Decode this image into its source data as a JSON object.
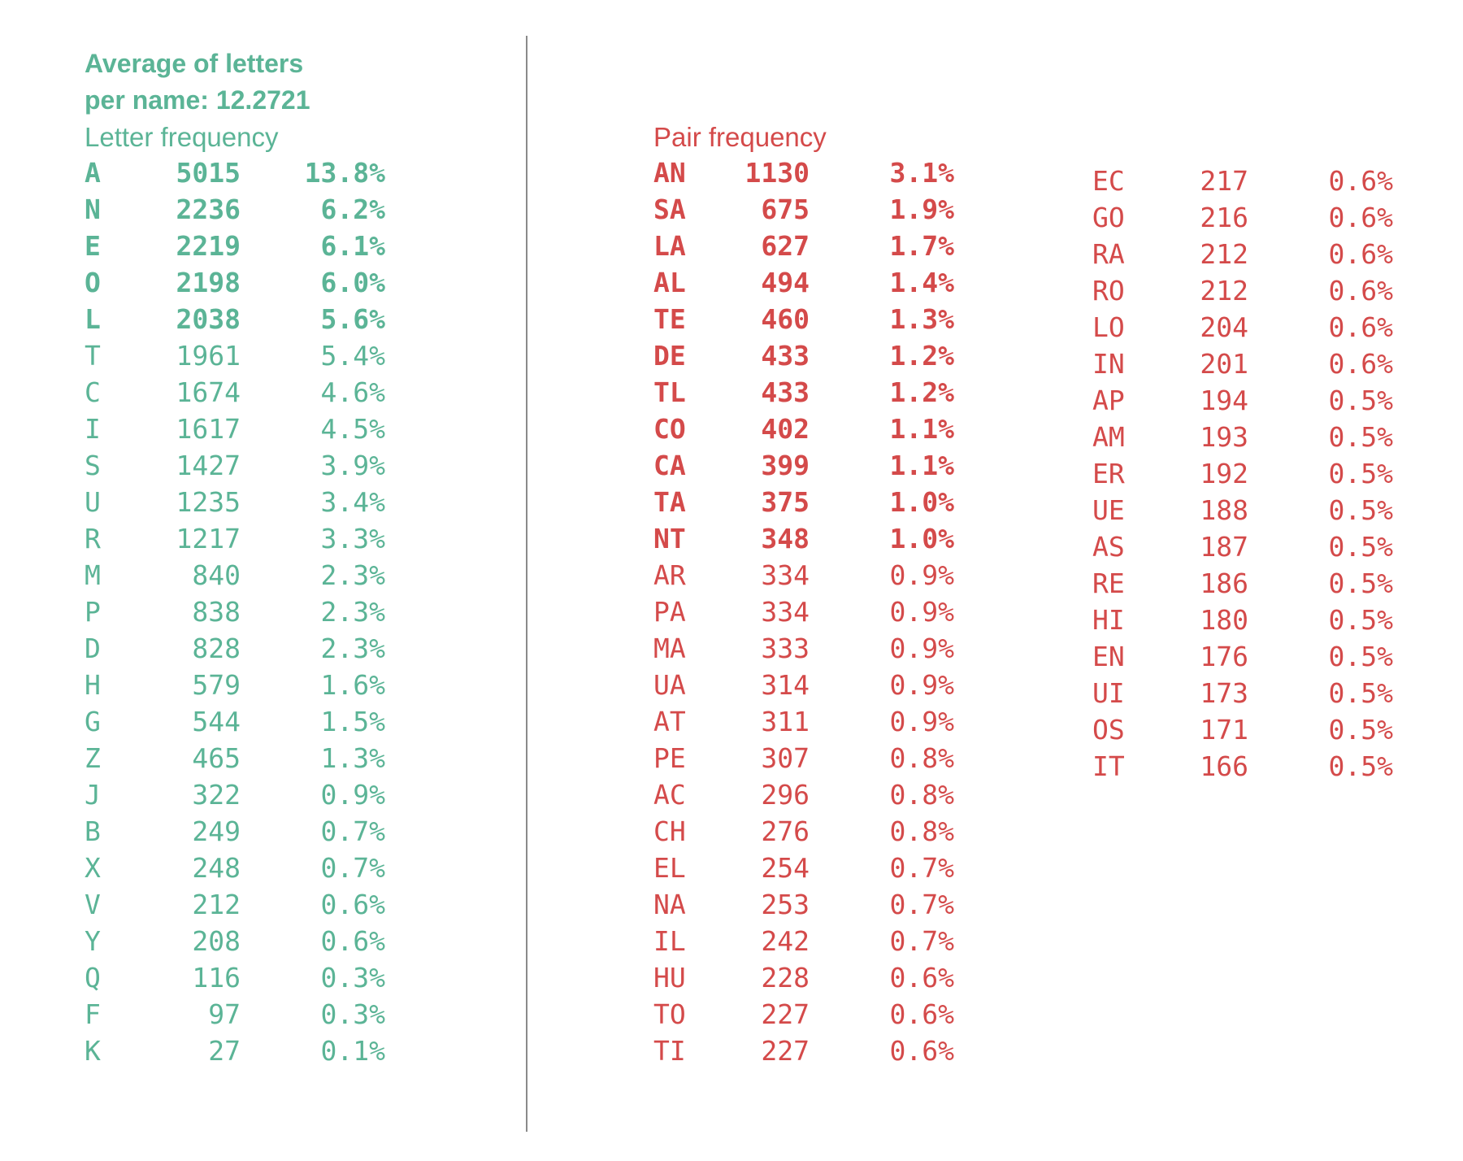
{
  "heading_line1": "Average of letters",
  "heading_line2": "per name: 12.2721",
  "letter_title": "Letter frequency",
  "pair_title": "Pair frequency",
  "colors": {
    "letters": "#5bb496",
    "pairs": "#d44a4a",
    "divider": "#8a8a8a"
  },
  "chart_data": [
    {
      "type": "table",
      "title": "Letter frequency",
      "columns": [
        "letter",
        "count",
        "percent"
      ],
      "bold_rows": 5,
      "rows": [
        [
          "A",
          "5015",
          "13.8%"
        ],
        [
          "N",
          "2236",
          "6.2%"
        ],
        [
          "E",
          "2219",
          "6.1%"
        ],
        [
          "O",
          "2198",
          "6.0%"
        ],
        [
          "L",
          "2038",
          "5.6%"
        ],
        [
          "T",
          "1961",
          "5.4%"
        ],
        [
          "C",
          "1674",
          "4.6%"
        ],
        [
          "I",
          "1617",
          "4.5%"
        ],
        [
          "S",
          "1427",
          "3.9%"
        ],
        [
          "U",
          "1235",
          "3.4%"
        ],
        [
          "R",
          "1217",
          "3.3%"
        ],
        [
          "M",
          "840",
          "2.3%"
        ],
        [
          "P",
          "838",
          "2.3%"
        ],
        [
          "D",
          "828",
          "2.3%"
        ],
        [
          "H",
          "579",
          "1.6%"
        ],
        [
          "G",
          "544",
          "1.5%"
        ],
        [
          "Z",
          "465",
          "1.3%"
        ],
        [
          "J",
          "322",
          "0.9%"
        ],
        [
          "B",
          "249",
          "0.7%"
        ],
        [
          "X",
          "248",
          "0.7%"
        ],
        [
          "V",
          "212",
          "0.6%"
        ],
        [
          "Y",
          "208",
          "0.6%"
        ],
        [
          "Q",
          "116",
          "0.3%"
        ],
        [
          "F",
          "97",
          "0.3%"
        ],
        [
          "K",
          "27",
          "0.1%"
        ]
      ]
    },
    {
      "type": "table",
      "title": "Pair frequency",
      "columns": [
        "pair",
        "count",
        "percent"
      ],
      "bold_rows": 11,
      "rows": [
        [
          "AN",
          "1130",
          "3.1%"
        ],
        [
          "SA",
          "675",
          "1.9%"
        ],
        [
          "LA",
          "627",
          "1.7%"
        ],
        [
          "AL",
          "494",
          "1.4%"
        ],
        [
          "TE",
          "460",
          "1.3%"
        ],
        [
          "DE",
          "433",
          "1.2%"
        ],
        [
          "TL",
          "433",
          "1.2%"
        ],
        [
          "CO",
          "402",
          "1.1%"
        ],
        [
          "CA",
          "399",
          "1.1%"
        ],
        [
          "TA",
          "375",
          "1.0%"
        ],
        [
          "NT",
          "348",
          "1.0%"
        ],
        [
          "AR",
          "334",
          "0.9%"
        ],
        [
          "PA",
          "334",
          "0.9%"
        ],
        [
          "MA",
          "333",
          "0.9%"
        ],
        [
          "UA",
          "314",
          "0.9%"
        ],
        [
          "AT",
          "311",
          "0.9%"
        ],
        [
          "PE",
          "307",
          "0.8%"
        ],
        [
          "AC",
          "296",
          "0.8%"
        ],
        [
          "CH",
          "276",
          "0.8%"
        ],
        [
          "EL",
          "254",
          "0.7%"
        ],
        [
          "NA",
          "253",
          "0.7%"
        ],
        [
          "IL",
          "242",
          "0.7%"
        ],
        [
          "HU",
          "228",
          "0.6%"
        ],
        [
          "TO",
          "227",
          "0.6%"
        ],
        [
          "TI",
          "227",
          "0.6%"
        ]
      ]
    },
    {
      "type": "table",
      "title": "",
      "columns": [
        "pair",
        "count",
        "percent"
      ],
      "bold_rows": 0,
      "rows": [
        [
          "EC",
          "217",
          "0.6%"
        ],
        [
          "GO",
          "216",
          "0.6%"
        ],
        [
          "RA",
          "212",
          "0.6%"
        ],
        [
          "RO",
          "212",
          "0.6%"
        ],
        [
          "LO",
          "204",
          "0.6%"
        ],
        [
          "IN",
          "201",
          "0.6%"
        ],
        [
          "AP",
          "194",
          "0.5%"
        ],
        [
          "AM",
          "193",
          "0.5%"
        ],
        [
          "ER",
          "192",
          "0.5%"
        ],
        [
          "UE",
          "188",
          "0.5%"
        ],
        [
          "AS",
          "187",
          "0.5%"
        ],
        [
          "RE",
          "186",
          "0.5%"
        ],
        [
          "HI",
          "180",
          "0.5%"
        ],
        [
          "EN",
          "176",
          "0.5%"
        ],
        [
          "UI",
          "173",
          "0.5%"
        ],
        [
          "OS",
          "171",
          "0.5%"
        ],
        [
          "IT",
          "166",
          "0.5%"
        ]
      ]
    }
  ]
}
